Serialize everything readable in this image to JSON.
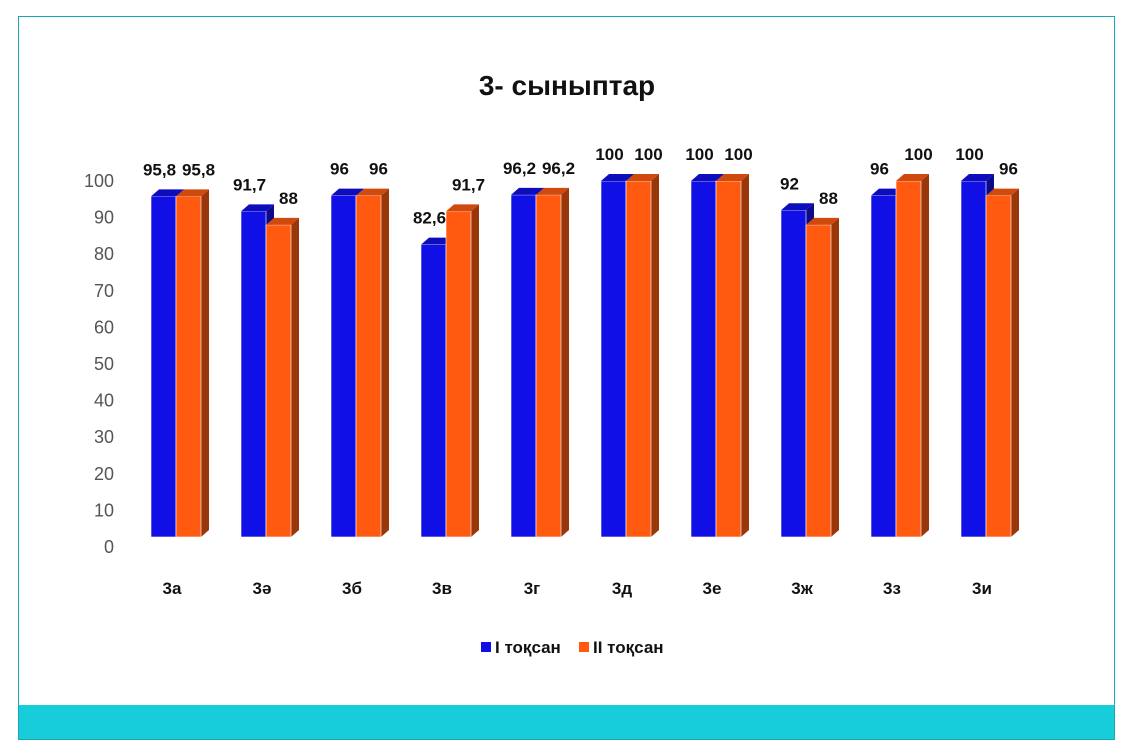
{
  "chart_data": {
    "type": "bar",
    "title": "3- сыныптар",
    "categories": [
      "3а",
      "3ә",
      "3б",
      "3в",
      "3г",
      "3д",
      "3е",
      "3ж",
      "3з",
      "3и"
    ],
    "series": [
      {
        "name": "I тоқсан",
        "color": "#1010e6",
        "values": [
          95.8,
          91.7,
          96,
          82.6,
          96.2,
          100,
          100,
          92,
          96,
          100
        ],
        "labels": [
          "95,8",
          "91,7",
          "96",
          "82,6",
          "96,2",
          "100",
          "100",
          "92",
          "96",
          "100"
        ]
      },
      {
        "name": "II тоқсан",
        "color": "#ff5a10",
        "values": [
          95.8,
          88,
          96,
          91.7,
          96.2,
          100,
          100,
          88,
          100,
          96
        ],
        "labels": [
          "95,8",
          "88",
          "96",
          "91,7",
          "96,2",
          "100",
          "100",
          "88",
          "100",
          "96"
        ]
      }
    ],
    "yticks": [
      "0",
      "10",
      "20",
      "30",
      "40",
      "50",
      "60",
      "70",
      "80",
      "90",
      "100"
    ],
    "ylim": [
      0,
      100
    ],
    "grid": false,
    "legend_position": "bottom",
    "style": "3d-clustered-column"
  },
  "theme": {
    "frame_color": "#1aa6b3",
    "footer_bar_color": "#16cdd9"
  }
}
